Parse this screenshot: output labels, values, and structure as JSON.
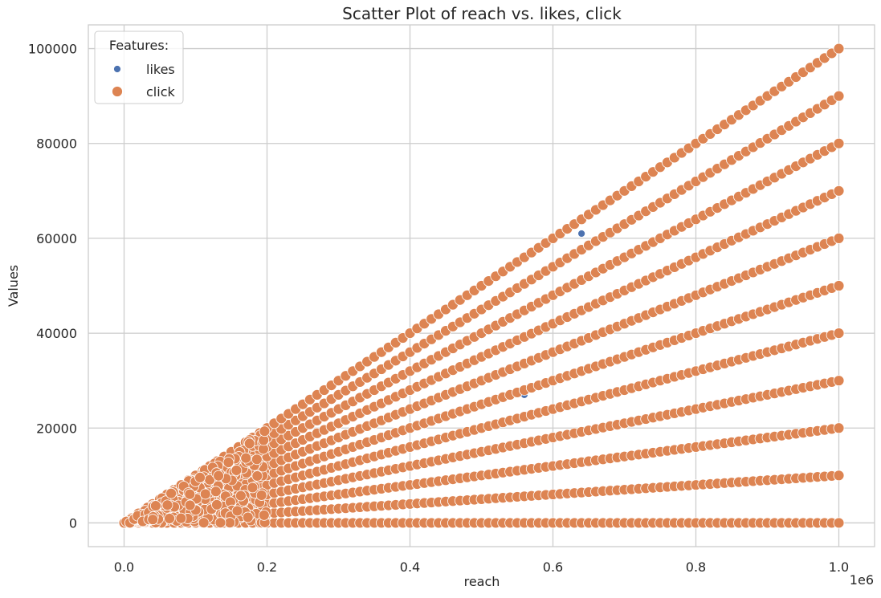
{
  "chart_data": {
    "type": "scatter",
    "title": "Scatter Plot of reach vs. likes, click",
    "xlabel": "reach",
    "ylabel": "Values",
    "x_offset_label": "1e6",
    "xlim": [
      -50000,
      1050000
    ],
    "ylim": [
      -5000,
      105000
    ],
    "xticks": [
      0,
      200000,
      400000,
      600000,
      800000,
      1000000
    ],
    "xtick_labels": [
      "0.0",
      "0.2",
      "0.4",
      "0.6",
      "0.8",
      "1.0"
    ],
    "yticks": [
      0,
      20000,
      40000,
      60000,
      80000,
      100000
    ],
    "ytick_labels": [
      "0",
      "20000",
      "40000",
      "60000",
      "80000",
      "100000"
    ],
    "grid": true,
    "legend": {
      "title": "Features:",
      "placement": "top-left"
    },
    "series": [
      {
        "name": "likes",
        "color": "#4c72b0",
        "points": [
          [
            0,
            0
          ],
          [
            10000,
            1000
          ],
          [
            20000,
            2000
          ],
          [
            40000,
            4000
          ],
          [
            60000,
            6000
          ],
          [
            80000,
            8000
          ],
          [
            105000,
            10500
          ],
          [
            150000,
            15000
          ],
          [
            200000,
            20000
          ],
          [
            250000,
            25000
          ],
          [
            300000,
            30000
          ],
          [
            320000,
            32000
          ],
          [
            400000,
            28000
          ],
          [
            530000,
            42400
          ],
          [
            580000,
            58000
          ],
          [
            600000,
            18000
          ],
          [
            640000,
            61000
          ],
          [
            700000,
            56000
          ],
          [
            740000,
            59200
          ],
          [
            820000,
            65600
          ],
          [
            860000,
            68800
          ],
          [
            900000,
            45000
          ],
          [
            1000000,
            50000
          ],
          [
            250000,
            8000
          ],
          [
            410000,
            4100
          ],
          [
            660000,
            0
          ],
          [
            120000,
            12000
          ],
          [
            180000,
            14400
          ],
          [
            230000,
            2000
          ],
          [
            350000,
            17500
          ],
          [
            470000,
            23500
          ],
          [
            550000,
            11000
          ],
          [
            760000,
            15200
          ],
          [
            950000,
            9500
          ],
          [
            300000,
            0
          ],
          [
            560000,
            27000
          ],
          [
            780000,
            54600
          ]
        ]
      },
      {
        "name": "click",
        "color": "#dd8452",
        "slopes": [
          0,
          0.01,
          0.02,
          0.03,
          0.04,
          0.05,
          0.06,
          0.07,
          0.08,
          0.09,
          0.1
        ],
        "x_range": [
          0,
          1000000
        ],
        "point_spacing": 10000,
        "cluster": {
          "x_max": 200000,
          "count": 320
        }
      }
    ]
  }
}
